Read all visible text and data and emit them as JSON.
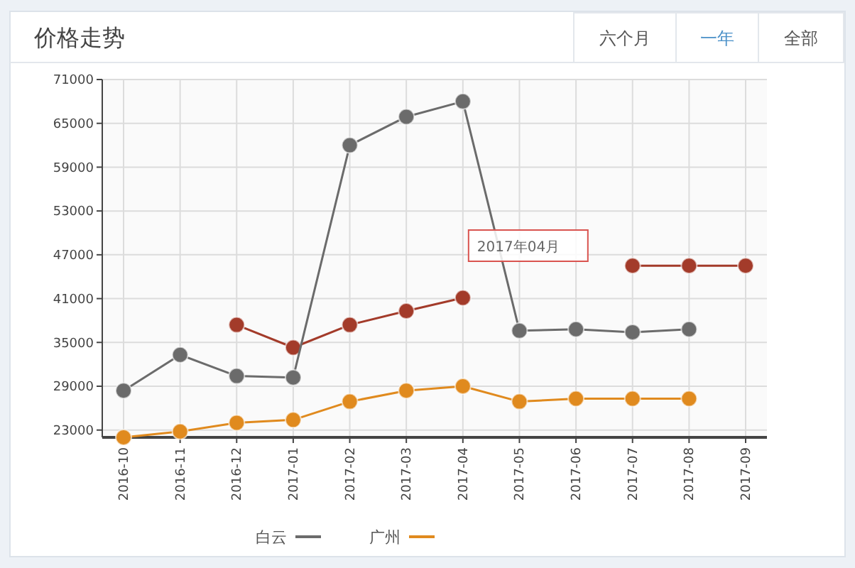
{
  "chart_data": {
    "type": "line",
    "title": "价格走势",
    "categories": [
      "2016-10",
      "2016-11",
      "2016-12",
      "2017-01",
      "2017-02",
      "2017-03",
      "2017-04",
      "2017-05",
      "2017-06",
      "2017-07",
      "2017-08",
      "2017-09"
    ],
    "series": [
      {
        "color": "#a33b2a",
        "values": [
          null,
          null,
          37400,
          34300,
          37400,
          39300,
          41100,
          null,
          null,
          45500,
          45500,
          45500
        ]
      },
      {
        "name": "白云",
        "color": "#6b6b6b",
        "values": [
          28400,
          33300,
          30400,
          30200,
          62000,
          65900,
          68000,
          36600,
          36800,
          36400,
          36800,
          null
        ]
      },
      {
        "name": "广州",
        "color": "#e08a1e",
        "values": [
          22000,
          22800,
          24000,
          24400,
          26900,
          28400,
          29000,
          26900,
          27300,
          27300,
          27300,
          null
        ]
      }
    ],
    "ylim": [
      22000,
      71000
    ],
    "yticks": [
      23000,
      29000,
      35000,
      41000,
      47000,
      53000,
      59000,
      65000,
      71000
    ],
    "grid": true,
    "marker": "circle",
    "line_style": "solid",
    "legend": "bottom",
    "annotations": [
      "2017年04月",
      "六个月",
      "一年",
      "全部"
    ]
  }
}
